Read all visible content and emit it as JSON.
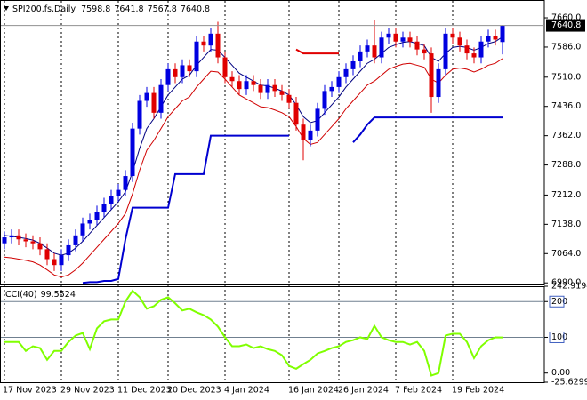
{
  "chart_data": [
    {
      "type": "candlestick",
      "title": "SPI200.fs,Daily",
      "categories": [
        "17 Nov 2023",
        null,
        null,
        null,
        null,
        null,
        null,
        null,
        "29 Nov 2023",
        null,
        null,
        null,
        null,
        null,
        null,
        null,
        "11 Dec 2023",
        null,
        null,
        null,
        null,
        null,
        null,
        "20 Dec 2023",
        null,
        null,
        null,
        null,
        null,
        null,
        null,
        "4 Jan 2024",
        null,
        null,
        null,
        null,
        null,
        null,
        null,
        null,
        "16 Jan 2024",
        null,
        null,
        null,
        null,
        null,
        null,
        "26 Jan 2024",
        null,
        null,
        null,
        null,
        null,
        null,
        null,
        "7 Feb 2024",
        null,
        null,
        null,
        null,
        null,
        null,
        null,
        "19 Feb 2024",
        null,
        null,
        null,
        null,
        null,
        null,
        null
      ],
      "open": [
        7090,
        7105,
        7110,
        7100,
        7095,
        7090,
        7075,
        7050,
        7035,
        7060,
        7085,
        7110,
        7140,
        7150,
        7170,
        7190,
        7210,
        7225,
        7260,
        7380,
        7450,
        7470,
        7420,
        7490,
        7530,
        7510,
        7540,
        7525,
        7600,
        7590,
        7620,
        7560,
        7510,
        7500,
        7480,
        7500,
        7490,
        7470,
        7490,
        7475,
        7465,
        7445,
        7390,
        7350,
        7375,
        7430,
        7475,
        7485,
        7510,
        7530,
        7550,
        7575,
        7590,
        7560,
        7610,
        7620,
        7600,
        7610,
        7600,
        7580,
        7570,
        7460,
        7530,
        7620,
        7610,
        7590,
        7570,
        7560,
        7600,
        7615,
        7598.8
      ],
      "high": [
        7120,
        7125,
        7125,
        7115,
        7110,
        7105,
        7090,
        7065,
        7075,
        7100,
        7125,
        7155,
        7165,
        7185,
        7205,
        7225,
        7240,
        7275,
        7395,
        7465,
        7485,
        7485,
        7505,
        7545,
        7545,
        7555,
        7555,
        7615,
        7615,
        7635,
        7650,
        7575,
        7525,
        7515,
        7515,
        7515,
        7505,
        7505,
        7505,
        7490,
        7480,
        7460,
        7405,
        7390,
        7445,
        7490,
        7500,
        7525,
        7545,
        7565,
        7590,
        7605,
        7655,
        7625,
        7635,
        7635,
        7625,
        7625,
        7615,
        7595,
        7585,
        7545,
        7635,
        7635,
        7625,
        7605,
        7585,
        7615,
        7630,
        7630,
        7641.8
      ],
      "low": [
        7075,
        7090,
        7085,
        7080,
        7075,
        7060,
        7035,
        7020,
        7020,
        7045,
        7070,
        7095,
        7125,
        7135,
        7155,
        7175,
        7195,
        7210,
        7245,
        7365,
        7435,
        7405,
        7405,
        7475,
        7495,
        7495,
        7510,
        7510,
        7575,
        7575,
        7545,
        7495,
        7485,
        7465,
        7465,
        7475,
        7455,
        7455,
        7460,
        7450,
        7430,
        7375,
        7300,
        7335,
        7360,
        7415,
        7460,
        7470,
        7495,
        7515,
        7535,
        7560,
        7545,
        7545,
        7595,
        7585,
        7585,
        7585,
        7565,
        7555,
        7420,
        7445,
        7515,
        7595,
        7575,
        7555,
        7545,
        7545,
        7585,
        7590,
        7567.8
      ],
      "close": [
        7105,
        7110,
        7100,
        7095,
        7090,
        7075,
        7050,
        7035,
        7060,
        7085,
        7110,
        7140,
        7150,
        7170,
        7190,
        7210,
        7225,
        7260,
        7380,
        7450,
        7470,
        7420,
        7490,
        7530,
        7510,
        7540,
        7525,
        7600,
        7590,
        7620,
        7560,
        7510,
        7500,
        7480,
        7500,
        7490,
        7470,
        7490,
        7475,
        7465,
        7445,
        7390,
        7350,
        7375,
        7430,
        7475,
        7485,
        7510,
        7530,
        7550,
        7575,
        7590,
        7560,
        7610,
        7620,
        7600,
        7610,
        7600,
        7580,
        7570,
        7460,
        7530,
        7620,
        7610,
        7590,
        7570,
        7560,
        7600,
        7615,
        7605,
        7640.8
      ],
      "up_color": "#0000e0",
      "down_color": "#e00000",
      "lines": [
        {
          "color": "#000080",
          "values": [
            7110,
            7108,
            7105,
            7102,
            7098,
            7090,
            7078,
            7065,
            7060,
            7065,
            7078,
            7095,
            7115,
            7135,
            7155,
            7175,
            7195,
            7220,
            7270,
            7330,
            7380,
            7405,
            7435,
            7465,
            7485,
            7505,
            7515,
            7540,
            7560,
            7580,
            7578,
            7560,
            7540,
            7520,
            7510,
            7500,
            7490,
            7488,
            7482,
            7475,
            7465,
            7440,
            7410,
            7395,
            7400,
            7420,
            7440,
            7460,
            7485,
            7505,
            7525,
            7545,
            7555,
            7570,
            7585,
            7592,
            7598,
            7600,
            7595,
            7590,
            7560,
            7550,
            7570,
            7585,
            7588,
            7585,
            7578,
            7585,
            7595,
            7600,
            7612
          ]
        },
        {
          "color": "#d00000",
          "values": [
            7055,
            7053,
            7050,
            7047,
            7043,
            7035,
            7023,
            7010,
            7005,
            7010,
            7023,
            7040,
            7060,
            7080,
            7100,
            7120,
            7140,
            7165,
            7215,
            7275,
            7325,
            7350,
            7380,
            7410,
            7430,
            7450,
            7460,
            7485,
            7505,
            7525,
            7523,
            7505,
            7485,
            7465,
            7455,
            7445,
            7435,
            7433,
            7427,
            7420,
            7410,
            7385,
            7355,
            7340,
            7345,
            7365,
            7385,
            7405,
            7430,
            7450,
            7470,
            7490,
            7500,
            7515,
            7530,
            7537,
            7543,
            7545,
            7540,
            7535,
            7505,
            7495,
            7515,
            7530,
            7533,
            7530,
            7523,
            7530,
            7540,
            7545,
            7557
          ]
        },
        {
          "color": "#0000d0",
          "values": [
            null,
            null,
            null,
            null,
            null,
            null,
            null,
            null,
            null,
            null,
            null,
            6990,
            6992,
            6992,
            6995,
            6995,
            7000,
            7100,
            7180,
            7180,
            7180,
            7180,
            7180,
            7180,
            7265,
            7265,
            7265,
            7265,
            7265,
            7362,
            7362,
            7362,
            7362,
            7362,
            7362,
            7362,
            7362,
            7362,
            7362,
            7362,
            7362,
            null,
            null,
            null,
            null,
            null,
            null,
            null,
            null,
            7345,
            7365,
            7390,
            7408,
            7408,
            7408,
            7408,
            7408,
            7408,
            7408,
            7408,
            7408,
            7408,
            7408,
            7408,
            7408,
            7408,
            7408,
            7408,
            7408,
            7408,
            7408
          ]
        },
        {
          "color": "#e00000",
          "values": [
            null,
            null,
            null,
            null,
            null,
            null,
            null,
            null,
            null,
            null,
            null,
            null,
            null,
            null,
            null,
            null,
            null,
            null,
            null,
            null,
            null,
            null,
            null,
            null,
            null,
            null,
            null,
            null,
            null,
            null,
            null,
            null,
            null,
            null,
            null,
            null,
            null,
            null,
            null,
            null,
            null,
            7580,
            7570,
            7570,
            7570,
            7570,
            7570,
            7570,
            null,
            null,
            null,
            null,
            null,
            null,
            null,
            null,
            null,
            null,
            null,
            null,
            null,
            null,
            null,
            null,
            null,
            null,
            null,
            null,
            null,
            null,
            null
          ]
        }
      ],
      "ylim": [
        6986,
        7705
      ],
      "yticks": [
        {
          "value": 7660,
          "label": "7660.0"
        },
        {
          "value": 7586,
          "label": "7586.0"
        },
        {
          "value": 7510,
          "label": "7510.0"
        },
        {
          "value": 7436,
          "label": "7436.0"
        },
        {
          "value": 7362,
          "label": "7362.0"
        },
        {
          "value": 7288,
          "label": "7288.0"
        },
        {
          "value": 7212,
          "label": "7212.0"
        },
        {
          "value": 7138,
          "label": "7138.0"
        },
        {
          "value": 7064,
          "label": "7064.0"
        },
        {
          "value": 6990,
          "label": "6990.0"
        }
      ]
    },
    {
      "type": "line",
      "title": "CCI(40)",
      "color": "#80ff00",
      "values": [
        87,
        87,
        87,
        62,
        75,
        70,
        37,
        62,
        62,
        87,
        105,
        112,
        67,
        125,
        145,
        150,
        150,
        200,
        230,
        212,
        180,
        187,
        205,
        212,
        195,
        175,
        180,
        170,
        162,
        150,
        130,
        100,
        75,
        75,
        80,
        70,
        75,
        67,
        62,
        50,
        20,
        12,
        25,
        37,
        55,
        62,
        70,
        75,
        87,
        92,
        100,
        95,
        132,
        100,
        92,
        87,
        87,
        80,
        87,
        62,
        -7,
        0,
        105,
        110,
        110,
        87,
        42,
        75,
        92,
        100,
        99.5524
      ],
      "ylim": [
        -25.6299,
        242.9194
      ],
      "yticks": [
        242.9194,
        200,
        100,
        {
          "value": 0,
          "label": "0.00"
        },
        -25.6299
      ],
      "levels": [
        200,
        100
      ]
    }
  ]
}
